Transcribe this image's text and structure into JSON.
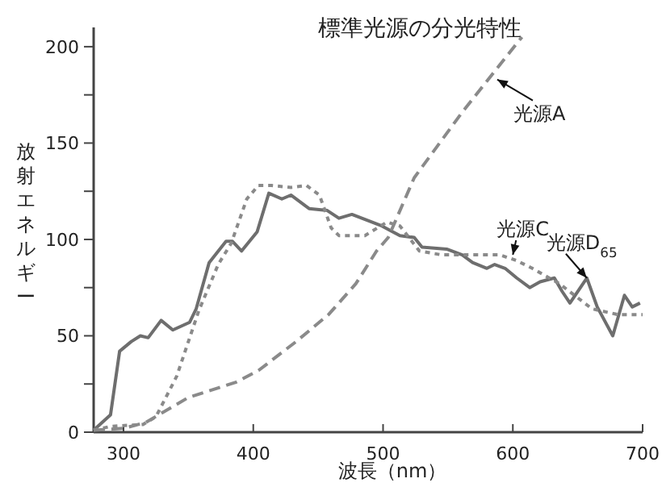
{
  "chart_data": {
    "type": "line",
    "title": "標準光源の分光特性",
    "xlabel": "波長（nm）",
    "ylabel": "放射エネルギー",
    "xlim": [
      277,
      700
    ],
    "xticks": [
      300,
      400,
      500,
      600,
      700
    ],
    "ylim": [
      0,
      210
    ],
    "yticks": [
      0,
      {
        "value": 25,
        "label": null
      },
      50,
      {
        "value": 75,
        "label": null
      },
      100,
      {
        "value": 125,
        "label": null
      },
      150,
      {
        "value": 175,
        "label": null
      },
      200
    ],
    "grid": false,
    "marker": "none",
    "series": [
      {
        "color": "#6e6e6e",
        "line_style": "solid",
        "x": [
          277,
          290,
          297,
          306,
          313,
          319,
          329,
          338,
          351,
          356,
          366,
          379,
          384,
          391,
          403,
          412,
          422,
          429,
          443,
          457,
          466,
          476,
          499,
          513,
          524,
          530,
          549,
          561,
          569,
          580,
          586,
          594,
          603,
          613,
          621,
          632,
          638,
          644,
          657,
          665,
          677,
          686,
          692,
          698
        ],
        "values": [
          1,
          9,
          42,
          47,
          50,
          49,
          58,
          53,
          57,
          64,
          88,
          99,
          99,
          94,
          104,
          124,
          121,
          123,
          116,
          115,
          111,
          113,
          107,
          102,
          101,
          96,
          95,
          92,
          88,
          85,
          87,
          85,
          80,
          75,
          78,
          80,
          73,
          67,
          80,
          65,
          50,
          71,
          65,
          67
        ]
      },
      {
        "color": "#8a8a8a",
        "line_style": "dotted",
        "x": [
          277,
          290,
          315,
          325,
          341,
          358,
          373,
          383,
          395,
          404,
          414,
          429,
          441,
          451,
          460,
          466,
          486,
          503,
          513,
          528,
          545,
          565,
          590,
          603,
          615,
          636,
          661,
          681,
          700
        ],
        "values": [
          1,
          3,
          4,
          8,
          29,
          63,
          87,
          98,
          121,
          128,
          128,
          127,
          128,
          123,
          106,
          102,
          102,
          109,
          107,
          94,
          92,
          92,
          92,
          89,
          85,
          77,
          64,
          61,
          61
        ]
      },
      {
        "color": "#8a8a8a",
        "line_style": "dashed",
        "x": [
          277,
          300,
          317,
          350,
          387,
          404,
          433,
          458,
          479,
          495,
          504,
          524,
          561,
          607
        ],
        "values": [
          1,
          2,
          5,
          18,
          26,
          32,
          47,
          61,
          77,
          94,
          101,
          132,
          166,
          205
        ]
      }
    ],
    "annotations": [
      {
        "text": "光源A",
        "x": 588,
        "y": 183
      },
      {
        "text": "光源C",
        "x": 600,
        "y": 92
      },
      {
        "text": "光源D$_{65}$",
        "x": 657,
        "y": 80
      }
    ]
  }
}
